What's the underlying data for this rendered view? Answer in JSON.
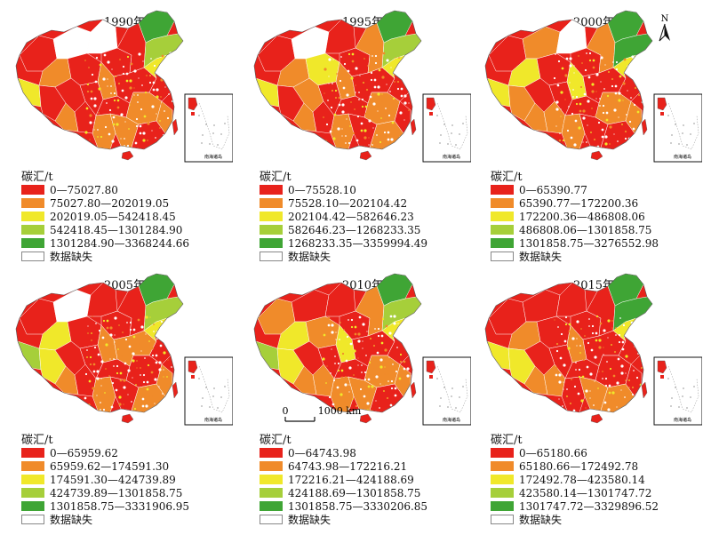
{
  "red": "#e8221b",
  "orange": "#f08b2a",
  "yellow": "#f0e82a",
  "lightgreen": "#a6cf3a",
  "green": "#3fa535",
  "north_label": "N",
  "scale": {
    "zero": "0",
    "label": "1000 km"
  },
  "inset_label": "南海诸岛",
  "legend_title": "碳汇/t",
  "missing_label": "数据缺失",
  "panels": [
    {
      "year": "1990年",
      "ranges": [
        "0—75027.80",
        "75027.80—202019.05",
        "202019.05—542418.45",
        "542418.45—1301284.90",
        "1301284.90—3368244.66"
      ]
    },
    {
      "year": "1995年",
      "ranges": [
        "0—75528.10",
        "75528.10—202104.42",
        "202104.42—582646.23",
        "582646.23—1268233.35",
        "1268233.35—3359994.49"
      ]
    },
    {
      "year": "2000年",
      "ranges": [
        "0—65390.77",
        "65390.77—172200.36",
        "172200.36—486808.06",
        "486808.06—1301858.75",
        "1301858.75—3276552.98"
      ]
    },
    {
      "year": "2005年",
      "ranges": [
        "0—65959.62",
        "65959.62—174591.30",
        "174591.30—424739.89",
        "424739.89—1301858.75",
        "1301858.75—3331906.95"
      ]
    },
    {
      "year": "2010年",
      "ranges": [
        "0—64743.98",
        "64743.98—172216.21",
        "172216.21—424188.69",
        "424188.69—1301858.75",
        "1301858.75—3330206.85"
      ]
    },
    {
      "year": "2015年",
      "ranges": [
        "0—65180.66",
        "65180.66—172492.78",
        "172492.78—423580.14",
        "423580.14—1301747.72",
        "1301747.72—3329896.52"
      ]
    }
  ]
}
